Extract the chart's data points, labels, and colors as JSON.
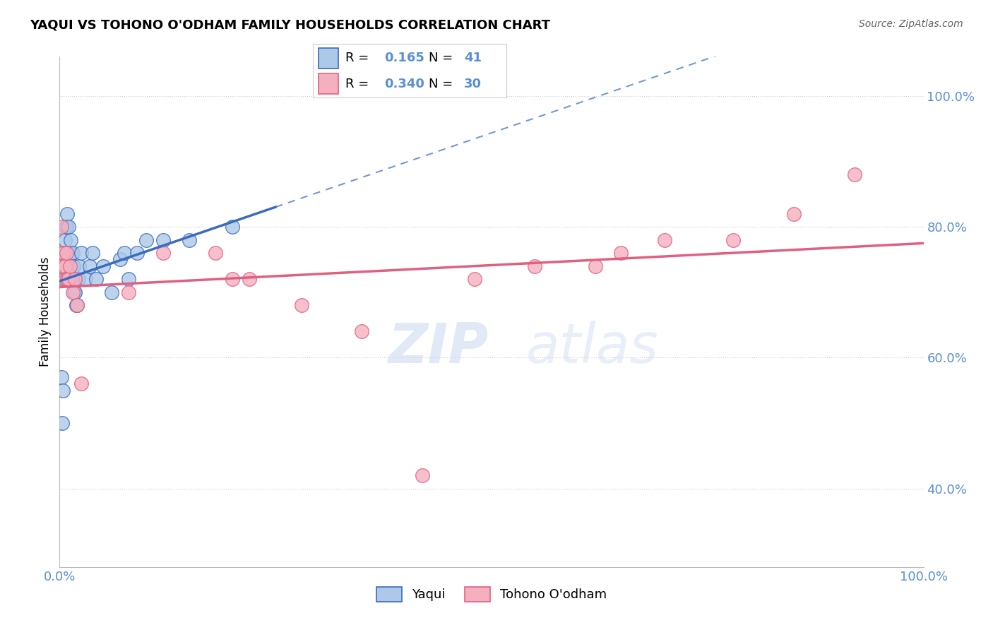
{
  "title": "YAQUI VS TOHONO O'ODHAM FAMILY HOUSEHOLDS CORRELATION CHART",
  "source": "Source: ZipAtlas.com",
  "ylabel": "Family Households",
  "yaqui_label": "Yaqui",
  "tohono_label": "Tohono O'odham",
  "R_yaqui": 0.165,
  "N_yaqui": 41,
  "R_tohono": 0.34,
  "N_tohono": 30,
  "yaqui_color": "#adc8e8",
  "tohono_color": "#f5b0c0",
  "yaqui_line_color": "#3a6bbf",
  "tohono_line_color": "#e06080",
  "grid_color": "#cccccc",
  "tick_label_color": "#5b8fd4",
  "background_color": "#ffffff",
  "yaqui_x": [
    0.002,
    0.003,
    0.004,
    0.005,
    0.006,
    0.007,
    0.008,
    0.009,
    0.01,
    0.01,
    0.011,
    0.012,
    0.013,
    0.013,
    0.014,
    0.015,
    0.015,
    0.016,
    0.016,
    0.017,
    0.018,
    0.018,
    0.019,
    0.02,
    0.022,
    0.023,
    0.025,
    0.03,
    0.035,
    0.038,
    0.042,
    0.05,
    0.06,
    0.07,
    0.075,
    0.08,
    0.09,
    0.1,
    0.12,
    0.15,
    0.2
  ],
  "yaqui_y": [
    0.57,
    0.5,
    0.55,
    0.72,
    0.78,
    0.8,
    0.8,
    0.82,
    0.76,
    0.8,
    0.76,
    0.76,
    0.76,
    0.78,
    0.74,
    0.74,
    0.76,
    0.72,
    0.74,
    0.7,
    0.7,
    0.72,
    0.68,
    0.68,
    0.72,
    0.74,
    0.76,
    0.72,
    0.74,
    0.76,
    0.72,
    0.74,
    0.7,
    0.75,
    0.76,
    0.72,
    0.76,
    0.78,
    0.78,
    0.78,
    0.8
  ],
  "tohono_x": [
    0.002,
    0.003,
    0.004,
    0.005,
    0.006,
    0.007,
    0.008,
    0.009,
    0.01,
    0.012,
    0.015,
    0.018,
    0.02,
    0.025,
    0.08,
    0.12,
    0.18,
    0.2,
    0.22,
    0.28,
    0.35,
    0.42,
    0.48,
    0.55,
    0.62,
    0.65,
    0.7,
    0.78,
    0.85,
    0.92
  ],
  "tohono_y": [
    0.8,
    0.76,
    0.74,
    0.76,
    0.74,
    0.72,
    0.76,
    0.72,
    0.72,
    0.74,
    0.7,
    0.72,
    0.68,
    0.56,
    0.7,
    0.76,
    0.76,
    0.72,
    0.72,
    0.68,
    0.64,
    0.42,
    0.72,
    0.74,
    0.74,
    0.76,
    0.78,
    0.78,
    0.82,
    0.88
  ],
  "xlim": [
    0.0,
    1.0
  ],
  "ylim": [
    0.28,
    1.06
  ],
  "yticks": [
    0.4,
    0.6,
    0.8,
    1.0
  ],
  "ytick_labels": [
    "40.0%",
    "60.0%",
    "80.0%",
    "100.0%"
  ],
  "solid_line_x_end": 0.25,
  "dashed_line_x_start": 0.0
}
